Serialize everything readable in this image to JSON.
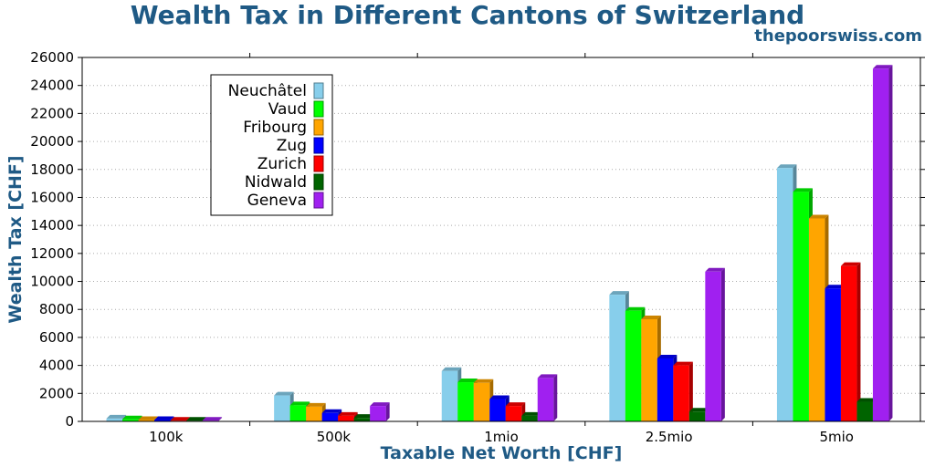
{
  "chart_data": {
    "type": "bar",
    "title": "Wealth Tax in Different Cantons of Switzerland",
    "source": "thepoorswiss.com",
    "xlabel": "Taxable Net Worth [CHF]",
    "ylabel": "Wealth Tax [CHF]",
    "ylim": [
      0,
      26000
    ],
    "yticks": [
      0,
      2000,
      4000,
      6000,
      8000,
      10000,
      12000,
      14000,
      16000,
      18000,
      20000,
      22000,
      24000,
      26000
    ],
    "grid": true,
    "legend_position": "top-left",
    "categories": [
      "100k",
      "500k",
      "1mio",
      "2.5mio",
      "5mio"
    ],
    "series": [
      {
        "name": "Neuchâtel",
        "color": "#87ceeb",
        "values": [
          200,
          1850,
          3600,
          9050,
          18100
        ]
      },
      {
        "name": "Vaud",
        "color": "#00ff00",
        "values": [
          150,
          1150,
          2800,
          7900,
          16400
        ]
      },
      {
        "name": "Fribourg",
        "color": "#ffa500",
        "values": [
          100,
          1050,
          2750,
          7300,
          14500
        ]
      },
      {
        "name": "Zug",
        "color": "#0000ff",
        "values": [
          100,
          600,
          1600,
          4500,
          9500
        ]
      },
      {
        "name": "Zurich",
        "color": "#ff0000",
        "values": [
          50,
          400,
          1100,
          4000,
          11100
        ]
      },
      {
        "name": "Nidwald",
        "color": "#006400",
        "values": [
          50,
          250,
          400,
          700,
          1400
        ]
      },
      {
        "name": "Geneva",
        "color": "#a020f0",
        "values": [
          50,
          1100,
          3100,
          10700,
          25200
        ]
      }
    ]
  }
}
